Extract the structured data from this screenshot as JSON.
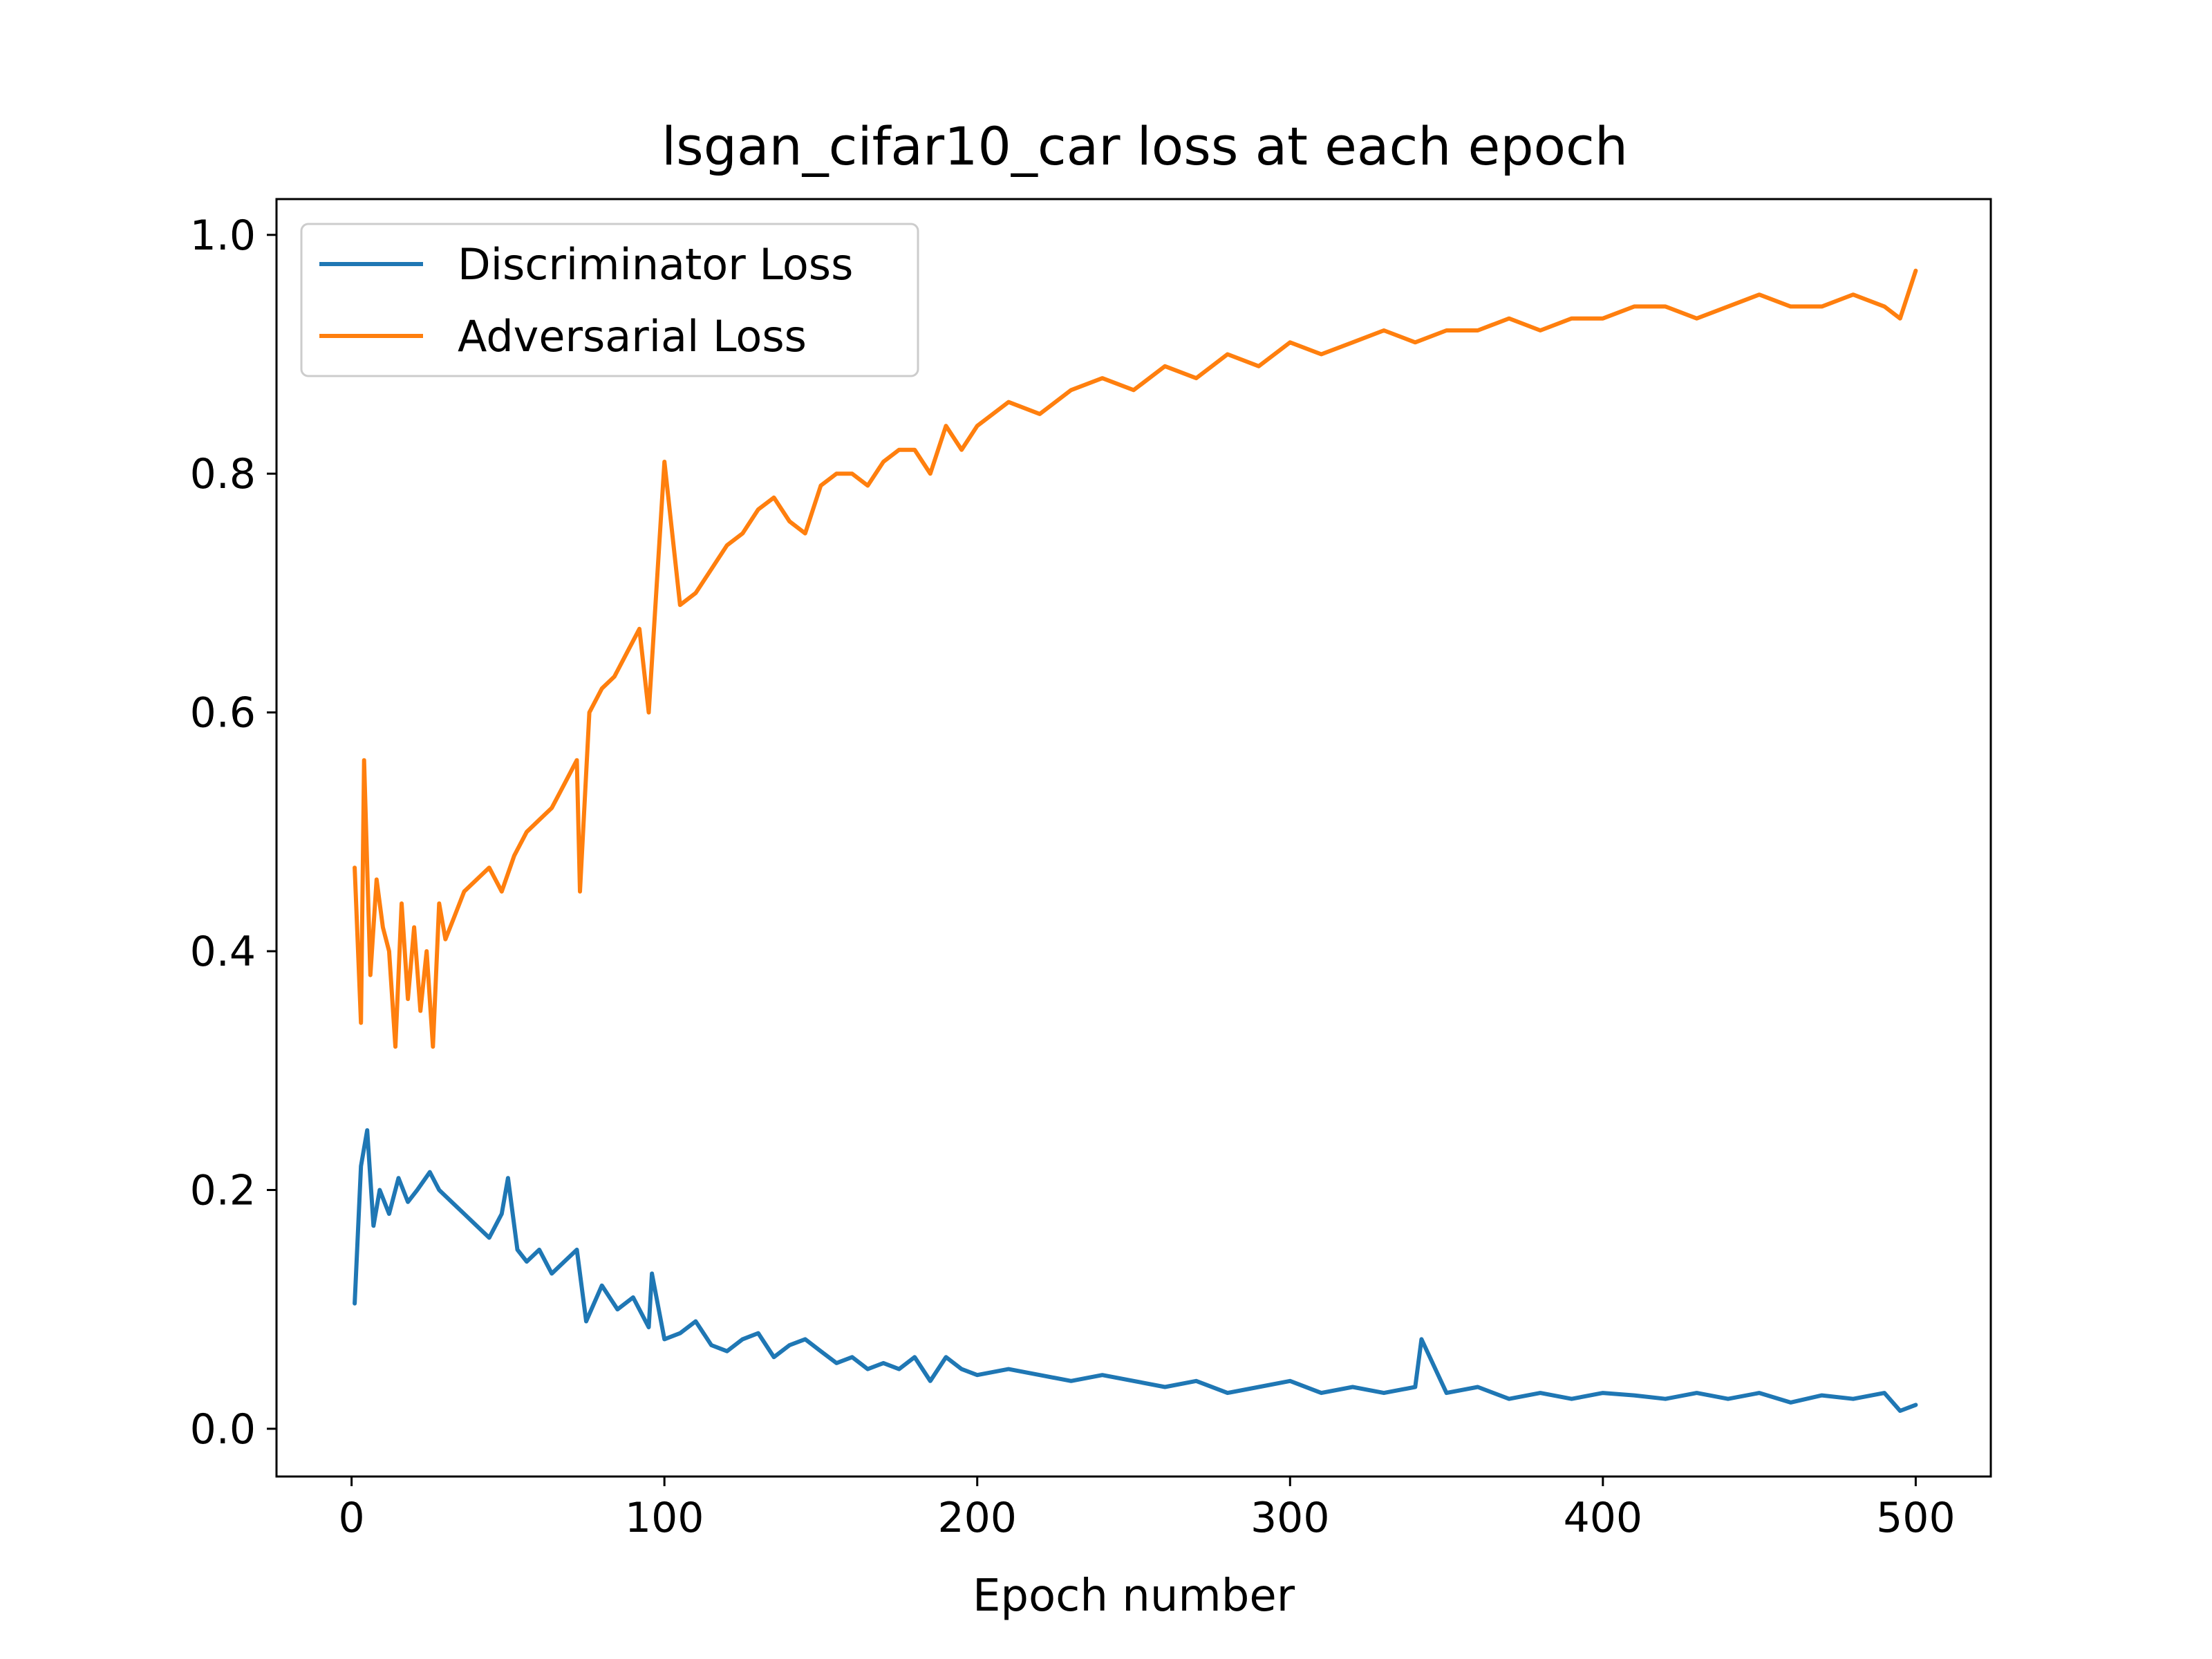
{
  "chart_data": {
    "type": "line",
    "title": "lsgan_cifar10_car loss at each epoch",
    "xlabel": "Epoch number",
    "ylabel": "",
    "xlim": [
      -24,
      524
    ],
    "ylim": [
      -0.04,
      1.03
    ],
    "xticks": [
      0,
      100,
      200,
      300,
      400,
      500
    ],
    "yticks": [
      0.0,
      0.2,
      0.4,
      0.6,
      0.8,
      1.0
    ],
    "xtick_labels": [
      "0",
      "100",
      "200",
      "300",
      "400",
      "500"
    ],
    "ytick_labels": [
      "0.0",
      "0.2",
      "0.4",
      "0.6",
      "0.8",
      "1.0"
    ],
    "grid": false,
    "legend_position": "top-left",
    "series": [
      {
        "name": "Discriminator Loss",
        "color": "#1f77b4",
        "x": [
          1,
          3,
          5,
          7,
          9,
          12,
          15,
          18,
          21,
          25,
          28,
          32,
          36,
          40,
          44,
          48,
          50,
          53,
          56,
          60,
          64,
          68,
          72,
          75,
          80,
          85,
          90,
          95,
          96,
          100,
          105,
          110,
          115,
          120,
          125,
          130,
          135,
          140,
          145,
          150,
          155,
          160,
          165,
          170,
          175,
          180,
          185,
          190,
          195,
          200,
          210,
          220,
          230,
          240,
          250,
          260,
          270,
          280,
          290,
          300,
          310,
          320,
          330,
          340,
          342,
          350,
          360,
          370,
          380,
          390,
          400,
          410,
          420,
          430,
          440,
          450,
          460,
          470,
          480,
          490,
          495,
          500
        ],
        "y": [
          0.105,
          0.22,
          0.25,
          0.17,
          0.2,
          0.18,
          0.21,
          0.19,
          0.2,
          0.215,
          0.2,
          0.19,
          0.18,
          0.17,
          0.16,
          0.18,
          0.21,
          0.15,
          0.14,
          0.15,
          0.13,
          0.14,
          0.15,
          0.09,
          0.12,
          0.1,
          0.11,
          0.085,
          0.13,
          0.075,
          0.08,
          0.09,
          0.07,
          0.065,
          0.075,
          0.08,
          0.06,
          0.07,
          0.075,
          0.065,
          0.055,
          0.06,
          0.05,
          0.055,
          0.05,
          0.06,
          0.04,
          0.06,
          0.05,
          0.045,
          0.05,
          0.045,
          0.04,
          0.045,
          0.04,
          0.035,
          0.04,
          0.03,
          0.035,
          0.04,
          0.03,
          0.035,
          0.03,
          0.035,
          0.075,
          0.03,
          0.035,
          0.025,
          0.03,
          0.025,
          0.03,
          0.028,
          0.025,
          0.03,
          0.025,
          0.03,
          0.022,
          0.028,
          0.025,
          0.03,
          0.015,
          0.02
        ]
      },
      {
        "name": "Adversarial Loss",
        "color": "#ff7f0e",
        "x": [
          1,
          3,
          4,
          6,
          8,
          10,
          12,
          14,
          16,
          18,
          20,
          22,
          24,
          26,
          28,
          30,
          33,
          36,
          40,
          44,
          48,
          52,
          56,
          60,
          64,
          68,
          72,
          73,
          76,
          80,
          84,
          88,
          92,
          95,
          100,
          105,
          110,
          115,
          120,
          125,
          130,
          135,
          140,
          145,
          150,
          155,
          160,
          165,
          170,
          175,
          180,
          185,
          190,
          195,
          200,
          210,
          220,
          230,
          240,
          250,
          260,
          270,
          280,
          290,
          300,
          310,
          320,
          330,
          340,
          350,
          360,
          370,
          380,
          390,
          400,
          410,
          420,
          430,
          440,
          450,
          460,
          470,
          480,
          490,
          495,
          500
        ],
        "y": [
          0.47,
          0.34,
          0.56,
          0.38,
          0.46,
          0.42,
          0.4,
          0.32,
          0.44,
          0.36,
          0.42,
          0.35,
          0.4,
          0.32,
          0.44,
          0.41,
          0.43,
          0.45,
          0.46,
          0.47,
          0.45,
          0.48,
          0.5,
          0.51,
          0.52,
          0.54,
          0.56,
          0.45,
          0.6,
          0.62,
          0.63,
          0.65,
          0.67,
          0.6,
          0.81,
          0.69,
          0.7,
          0.72,
          0.74,
          0.75,
          0.77,
          0.78,
          0.76,
          0.75,
          0.79,
          0.8,
          0.8,
          0.79,
          0.81,
          0.82,
          0.82,
          0.8,
          0.84,
          0.82,
          0.84,
          0.86,
          0.85,
          0.87,
          0.88,
          0.87,
          0.89,
          0.88,
          0.9,
          0.89,
          0.91,
          0.9,
          0.91,
          0.92,
          0.91,
          0.92,
          0.92,
          0.93,
          0.92,
          0.93,
          0.93,
          0.94,
          0.94,
          0.93,
          0.94,
          0.95,
          0.94,
          0.94,
          0.95,
          0.94,
          0.93,
          0.97
        ]
      }
    ]
  }
}
